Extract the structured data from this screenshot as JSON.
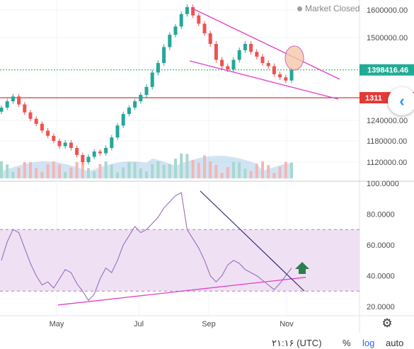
{
  "status": {
    "market": "Market Closed"
  },
  "price_axis": {
    "ticks": [
      "1600000.00",
      "1500000.00",
      "1240000.00",
      "1180000.00",
      "1120000.00"
    ]
  },
  "tags": {
    "last_price": {
      "label": "1398416.46",
      "color": "#22ab94"
    },
    "support": {
      "label": "1311",
      "color": "#e53935"
    }
  },
  "rsi_axis": {
    "ticks": [
      "100.0000",
      "80.0000",
      "60.0000",
      "40.0000",
      "20.0000"
    ]
  },
  "time_axis": {
    "labels": [
      "May",
      "Jul",
      "Sep",
      "Nov"
    ]
  },
  "bottom": {
    "time": "۲۱:۱۶ (UTC)",
    "percent": "%",
    "log": "log",
    "auto": "auto"
  },
  "icons": {
    "scroll": "chevron-left-icon",
    "settings": "gear-icon",
    "signal": "arrow-up-icon",
    "highlight": "ellipse-highlight"
  },
  "colors": {
    "up": "#26a69a",
    "down": "#ef5350",
    "rsi": "#9c6bc0",
    "trend": "#e040c8",
    "rsi_trend": "#2d2a6e",
    "band": "#efe1f3",
    "volume": "#7fb3e0"
  },
  "chart_data": [
    {
      "type": "candlestick",
      "x_labels": [
        "May",
        "Jul",
        "Sep",
        "Nov"
      ],
      "y_ticks": [
        1120000,
        1180000,
        1240000,
        1500000,
        1600000
      ],
      "horizontal_levels": [
        1398416.46,
        1311000
      ],
      "trend_lines": [
        {
          "from": {
            "x": "late Aug",
            "y": 1610000
          },
          "to": {
            "x": "late Nov",
            "y": 1380000
          }
        },
        {
          "from": {
            "x": "mid Aug",
            "y": 1410000
          },
          "to": {
            "x": "late Nov",
            "y": 1300000
          }
        }
      ],
      "prices": [
        1280000,
        1300000,
        1315000,
        1290000,
        1265000,
        1245000,
        1230000,
        1210000,
        1195000,
        1180000,
        1165000,
        1175000,
        1160000,
        1140000,
        1120000,
        1135000,
        1150000,
        1145000,
        1160000,
        1190000,
        1225000,
        1260000,
        1280000,
        1300000,
        1320000,
        1345000,
        1390000,
        1420000,
        1470000,
        1510000,
        1540000,
        1585000,
        1610000,
        1580000,
        1550000,
        1515000,
        1480000,
        1430000,
        1410000,
        1400000,
        1430000,
        1460000,
        1480000,
        1455000,
        1440000,
        1420000,
        1410000,
        1385000,
        1375000,
        1365000,
        1398416
      ]
    },
    {
      "type": "line",
      "name": "RSI",
      "ylim": [
        20,
        100
      ],
      "y_ticks": [
        100,
        80,
        60,
        40,
        20
      ],
      "band": [
        30,
        70
      ],
      "values": [
        50,
        62,
        70,
        68,
        58,
        48,
        40,
        34,
        36,
        32,
        38,
        44,
        42,
        35,
        30,
        24,
        28,
        38,
        45,
        42,
        50,
        60,
        66,
        72,
        68,
        70,
        74,
        78,
        84,
        88,
        92,
        94,
        70,
        64,
        58,
        50,
        40,
        36,
        40,
        47,
        50,
        48,
        44,
        42,
        40,
        37,
        34,
        31,
        35,
        40,
        45
      ],
      "trend_lines": [
        {
          "from": {
            "x": "late Apr",
            "y": 21
          },
          "to": {
            "x": "early Nov",
            "y": 39
          }
        },
        {
          "from": {
            "x": "late Aug",
            "y": 95
          },
          "to": {
            "x": "early Nov",
            "y": 30
          }
        }
      ]
    }
  ]
}
